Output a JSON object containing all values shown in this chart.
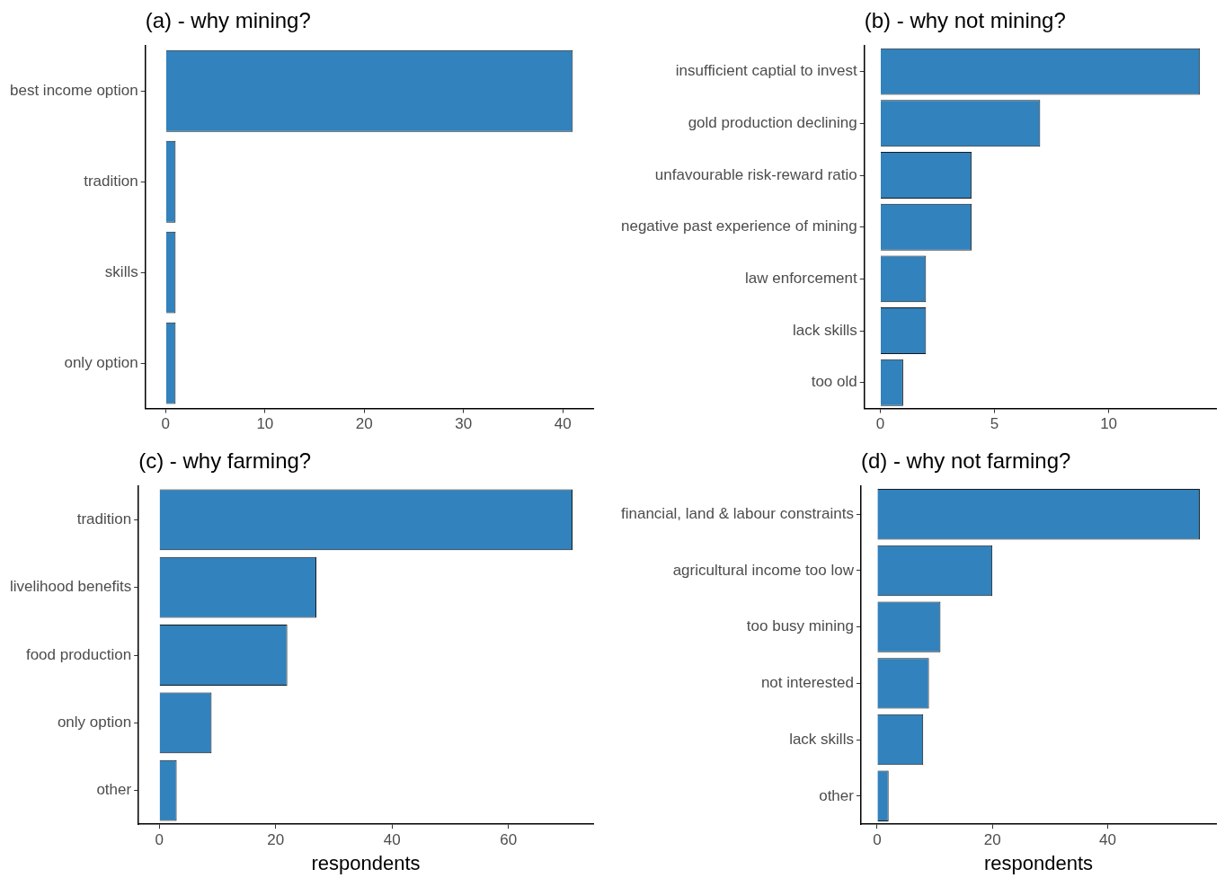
{
  "chart_data": [
    {
      "type": "bar",
      "orientation": "horizontal",
      "title": "(a) - why mining?",
      "categories": [
        "best income option",
        "tradition",
        "skills",
        "only option"
      ],
      "values": [
        41,
        1,
        1,
        1
      ],
      "color": "#3182bd",
      "xlim": [
        -2.05,
        43.05
      ],
      "xticks": [
        0,
        10,
        20,
        30,
        40
      ]
    },
    {
      "type": "bar",
      "orientation": "horizontal",
      "title": "(b) - why not mining?",
      "categories": [
        "insufficient captial to invest",
        "gold production declining",
        "unfavourable risk-reward ratio",
        "negative past experience of mining",
        "law enforcement",
        "lack skills",
        "too old"
      ],
      "values": [
        14,
        7,
        4,
        4,
        2,
        2,
        1
      ],
      "color": "#3182bd",
      "xlim": [
        -0.7,
        14.7
      ],
      "xticks": [
        0,
        5,
        10
      ]
    },
    {
      "type": "bar",
      "orientation": "horizontal",
      "title": "(c) - why farming?",
      "xlabel": "respondents",
      "categories": [
        "tradition",
        "livelihood benefits",
        "food production",
        "only option",
        "other"
      ],
      "values": [
        71,
        27,
        22,
        9,
        3
      ],
      "color": "#3182bd",
      "xlim": [
        -3.55,
        74.55
      ],
      "xticks": [
        0,
        20,
        40,
        60
      ]
    },
    {
      "type": "bar",
      "orientation": "horizontal",
      "title": "(d) - why not farming?",
      "xlabel": "respondents",
      "categories": [
        "financial, land & labour constraints",
        "agricultural income too low",
        "too busy mining",
        "not interested",
        "lack skills",
        "other"
      ],
      "values": [
        56,
        20,
        11,
        9,
        8,
        2
      ],
      "color": "#3182bd",
      "xlim": [
        -2.8,
        58.8
      ],
      "xticks": [
        0,
        20,
        40
      ]
    }
  ]
}
